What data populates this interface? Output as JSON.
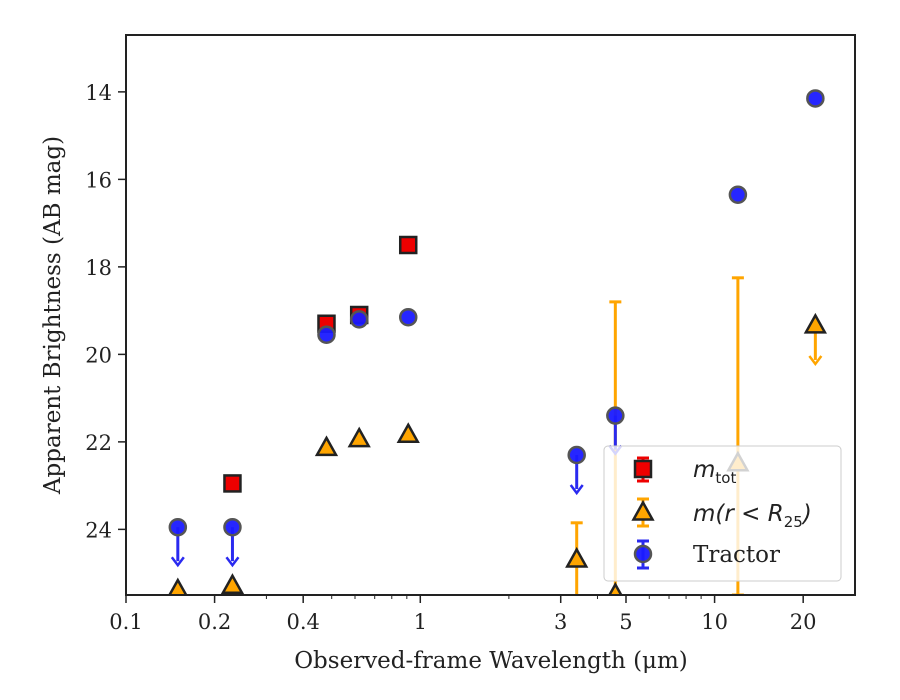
{
  "chart_data": {
    "type": "scatter",
    "xlabel": "Observed-frame Wavelength (μm)",
    "ylabel": "Apparent Brightness (AB mag)",
    "xscale": "log",
    "xlim": [
      0.1,
      30
    ],
    "ylim": [
      25.5,
      12.7
    ],
    "y_inverted": true,
    "xticks": [
      {
        "value": 0.1,
        "label": "0.1"
      },
      {
        "value": 0.2,
        "label": "0.2"
      },
      {
        "value": 0.4,
        "label": "0.4"
      },
      {
        "value": 1,
        "label": "1"
      },
      {
        "value": 3,
        "label": "3"
      },
      {
        "value": 5,
        "label": "5"
      },
      {
        "value": 10,
        "label": "10"
      },
      {
        "value": 20,
        "label": "20"
      }
    ],
    "yticks": [
      {
        "value": 14,
        "label": "14"
      },
      {
        "value": 16,
        "label": "16"
      },
      {
        "value": 18,
        "label": "18"
      },
      {
        "value": 20,
        "label": "20"
      },
      {
        "value": 22,
        "label": "22"
      },
      {
        "value": 24,
        "label": "24"
      }
    ],
    "legend_position": "lower-right",
    "series": [
      {
        "name": "m_tot",
        "marker": "square",
        "color": "#ee0000",
        "points": [
          {
            "x": 0.23,
            "y": 22.95
          },
          {
            "x": 0.48,
            "y": 19.3
          },
          {
            "x": 0.62,
            "y": 19.1
          },
          {
            "x": 0.91,
            "y": 17.5
          }
        ]
      },
      {
        "name": "m(r < R_25)",
        "marker": "triangle",
        "color": "#ffa500",
        "points": [
          {
            "x": 0.15,
            "y": 25.4,
            "upper_limit": true
          },
          {
            "x": 0.23,
            "y": 25.3,
            "upper_limit": true
          },
          {
            "x": 0.48,
            "y": 22.15
          },
          {
            "x": 0.62,
            "y": 21.95
          },
          {
            "x": 0.91,
            "y": 21.85
          },
          {
            "x": 3.4,
            "y": 24.7,
            "yerr": [
              0.85,
              0.85
            ]
          },
          {
            "x": 4.6,
            "y": 25.5,
            "yerr": [
              6.7,
              0.1
            ]
          },
          {
            "x": 12,
            "y": 22.5,
            "yerr": [
              4.25,
              3.0
            ]
          },
          {
            "x": 22,
            "y": 19.35,
            "upper_limit": true
          }
        ]
      },
      {
        "name": "Tractor",
        "marker": "circle",
        "color": "#1a1aff",
        "points": [
          {
            "x": 0.15,
            "y": 23.95,
            "upper_limit": true
          },
          {
            "x": 0.23,
            "y": 23.95,
            "upper_limit": true
          },
          {
            "x": 0.48,
            "y": 19.55
          },
          {
            "x": 0.62,
            "y": 19.2
          },
          {
            "x": 0.91,
            "y": 19.15
          },
          {
            "x": 3.4,
            "y": 22.3,
            "upper_limit": true
          },
          {
            "x": 4.6,
            "y": 21.4,
            "upper_limit": true
          },
          {
            "x": 12,
            "y": 16.35
          },
          {
            "x": 22,
            "y": 14.15
          }
        ]
      }
    ]
  },
  "legend": {
    "tot_main": "m",
    "tot_sub": "tot",
    "r25_main": "m(r < R",
    "r25_sub": "25",
    "r25_close": ")",
    "tractor": "Tractor"
  }
}
